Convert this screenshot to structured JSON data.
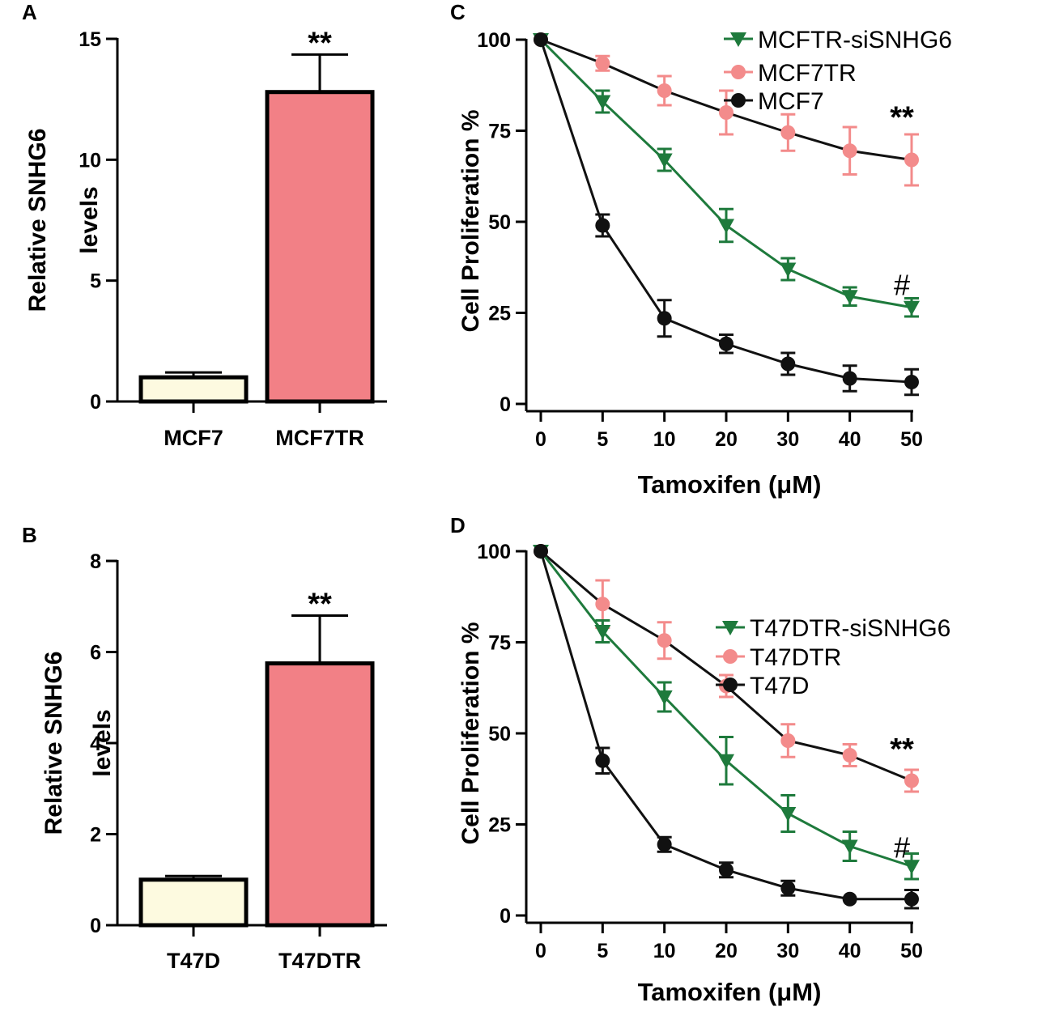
{
  "colors": {
    "green": "#1e7a3c",
    "pink": "#f38b8b",
    "black": "#111111",
    "cream": "#fdfae0",
    "bar_pink": "#f28086"
  },
  "chart_data": [
    {
      "id": "A",
      "type": "bar",
      "panel_label": "A",
      "categories": [
        "MCF7",
        "MCF7TR"
      ],
      "values": [
        1.0,
        12.8
      ],
      "errors": [
        0.2,
        1.55
      ],
      "ylabel": [
        "Relative SNHG6",
        "levels"
      ],
      "ylim": [
        0,
        15
      ],
      "yticks": [
        0,
        5,
        10,
        15
      ],
      "significance": [
        {
          "category": "MCF7TR",
          "label": "**"
        }
      ]
    },
    {
      "id": "B",
      "type": "bar",
      "panel_label": "B",
      "categories": [
        "T47D",
        "T47DTR"
      ],
      "values": [
        1.0,
        5.75
      ],
      "errors": [
        0.08,
        1.05
      ],
      "ylabel": [
        "Relative SNHG6",
        "levels"
      ],
      "ylim": [
        0,
        8
      ],
      "yticks": [
        0,
        2,
        4,
        6,
        8
      ],
      "significance": [
        {
          "category": "T47DTR",
          "label": "**"
        }
      ]
    },
    {
      "id": "C",
      "type": "line",
      "panel_label": "C",
      "xlabel": "Tamoxifen (μM)",
      "ylabel": "Cell Proliferation %",
      "x": [
        0,
        5,
        10,
        20,
        30,
        40,
        50
      ],
      "ylim": [
        0,
        100
      ],
      "yticks": [
        0,
        25,
        50,
        75,
        100
      ],
      "series": [
        {
          "name": "MCFTR-siSNHG6",
          "marker": "triangle-down",
          "color": "#1e7a3c",
          "values": [
            100,
            83,
            67,
            49,
            37,
            29.5,
            26.5
          ],
          "errors": [
            0,
            3,
            3,
            4.5,
            3,
            2.5,
            2.5
          ]
        },
        {
          "name": "MCF7TR",
          "marker": "circle",
          "color": "#f38b8b",
          "values": [
            100,
            93.5,
            86,
            80,
            74.5,
            69.5,
            67
          ],
          "errors": [
            0,
            2,
            4,
            6,
            5,
            6.5,
            7
          ]
        },
        {
          "name": "MCF7",
          "marker": "circle",
          "color": "#111111",
          "values": [
            100,
            49,
            23.5,
            16.5,
            11,
            7,
            6
          ],
          "errors": [
            0,
            3,
            5,
            2.5,
            3,
            3.5,
            3.5
          ]
        }
      ],
      "annotations": [
        {
          "x": 50,
          "y": 79,
          "text": "**"
        },
        {
          "x": 50,
          "y": 33,
          "text": "#"
        }
      ]
    },
    {
      "id": "D",
      "type": "line",
      "panel_label": "D",
      "xlabel": "Tamoxifen (μM)",
      "ylabel": "Cell Proliferation %",
      "x": [
        0,
        5,
        10,
        20,
        30,
        40,
        50
      ],
      "ylim": [
        0,
        100
      ],
      "yticks": [
        0,
        25,
        50,
        75,
        100
      ],
      "series": [
        {
          "name": "T47DTR-siSNHG6",
          "marker": "triangle-down",
          "color": "#1e7a3c",
          "values": [
            100,
            78,
            60,
            42.5,
            28,
            19,
            13.5
          ],
          "errors": [
            0,
            3,
            4,
            6.5,
            5,
            4,
            3.5
          ]
        },
        {
          "name": "T47DTR",
          "marker": "circle",
          "color": "#f38b8b",
          "values": [
            100,
            85.5,
            75.5,
            63,
            48,
            44,
            37
          ],
          "errors": [
            0,
            6.5,
            5,
            3,
            4.5,
            3,
            3
          ]
        },
        {
          "name": "T47D",
          "marker": "circle",
          "color": "#111111",
          "values": [
            100,
            42.5,
            19.5,
            12.5,
            7.5,
            4.5,
            4.5
          ],
          "errors": [
            0,
            3.5,
            2,
            2,
            2,
            0,
            2.5
          ]
        }
      ],
      "annotations": [
        {
          "x": 50,
          "y": 46,
          "text": "**"
        },
        {
          "x": 50,
          "y": 19,
          "text": "#"
        }
      ]
    }
  ]
}
